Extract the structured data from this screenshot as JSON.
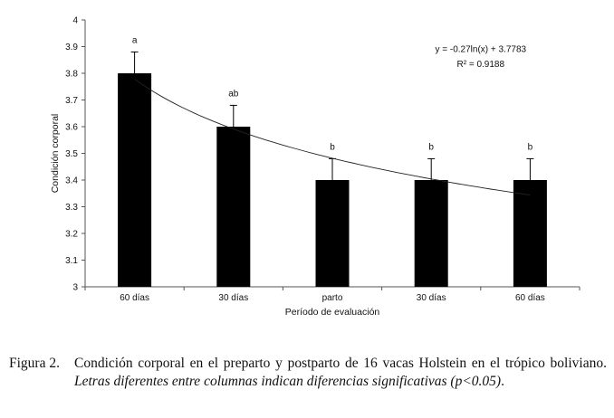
{
  "chart_data": {
    "type": "bar",
    "title": "",
    "xlabel": "Período de evaluación",
    "ylabel": "Condición corporal",
    "ylim": [
      3,
      4
    ],
    "yticks": [
      "3",
      "3.1",
      "3.2",
      "3.3",
      "3.4",
      "3.5",
      "3.6",
      "3.7",
      "3.8",
      "3.9",
      "4"
    ],
    "categories": [
      "60 días",
      "30 días",
      "parto",
      "30 días",
      "60 días"
    ],
    "values": [
      3.8,
      3.6,
      3.4,
      3.4,
      3.4
    ],
    "errors": [
      0.08,
      0.08,
      0.08,
      0.08,
      0.08
    ],
    "significance_letters": [
      "a",
      "ab",
      "b",
      "b",
      "b"
    ],
    "bar_color": "#000000",
    "grid": false,
    "trendline": {
      "type": "logarithmic",
      "a": -0.27,
      "b": 3.7783,
      "equation_text": "y = -0.27ln(x) + 3.7783",
      "r2_text": "R² = 0.9188"
    }
  },
  "caption": {
    "label": "Figura 2.",
    "text": "Condición corporal en el preparto y postparto de 16 vacas Holstein en el trópico boliviano. ",
    "italic": "Letras diferentes entre columnas indican diferencias significativas (p<0.05)",
    "end": "."
  }
}
